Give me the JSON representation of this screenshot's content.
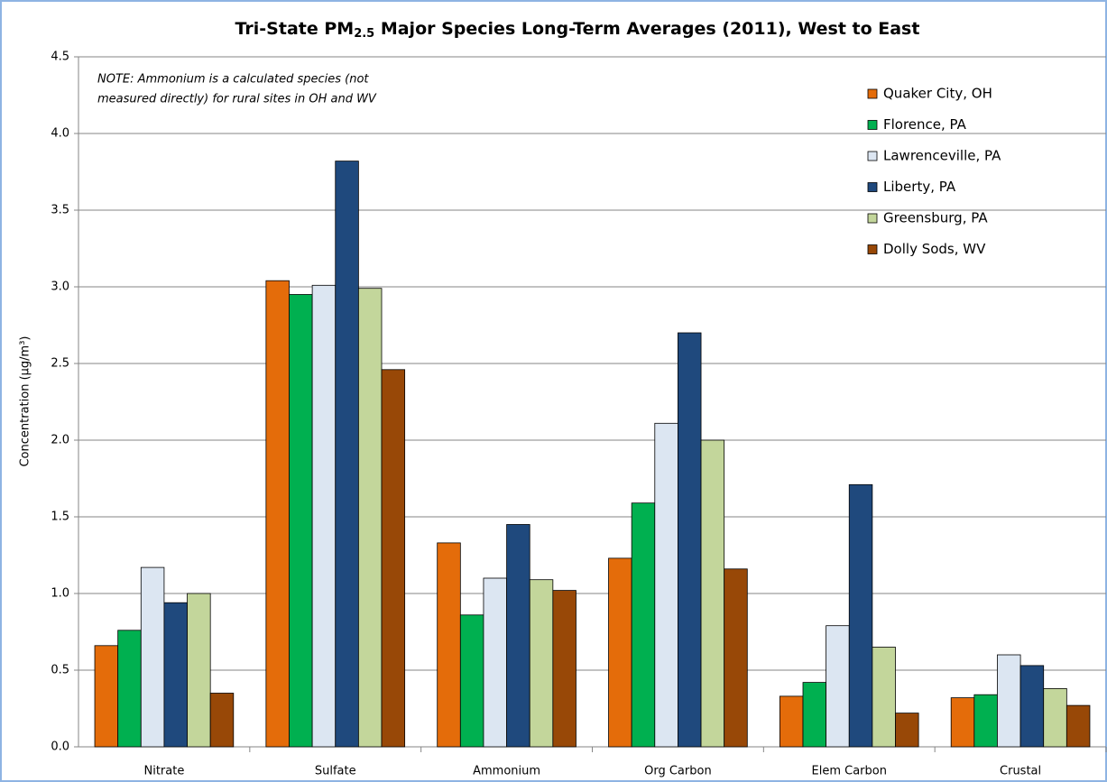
{
  "chart_data": {
    "type": "bar",
    "title": "Tri-State PM",
    "title_subscript": "2.5",
    "title_rest": " Major Species Long-Term Averages (2011), West to East",
    "y_label": "Concentration (µg/m³)",
    "note": [
      "NOTE:  Ammonium is a calculated species (not",
      "measured directly) for rural sites in OH and WV"
    ],
    "categories": [
      "Nitrate",
      "Sulfate",
      "Ammonium",
      "Org Carbon",
      "Elem Carbon",
      "Crustal"
    ],
    "series": [
      {
        "name": "Quaker City, OH",
        "color": "#e46c0a",
        "values": [
          0.66,
          3.04,
          1.33,
          1.23,
          0.33,
          0.32
        ]
      },
      {
        "name": "Florence, PA",
        "color": "#00b050",
        "values": [
          0.76,
          2.95,
          0.86,
          1.59,
          0.42,
          0.34
        ]
      },
      {
        "name": "Lawrenceville, PA",
        "color": "#dce6f2",
        "values": [
          1.17,
          3.01,
          1.1,
          2.11,
          0.79,
          0.6
        ]
      },
      {
        "name": "Liberty, PA",
        "color": "#1f497d",
        "values": [
          0.94,
          3.82,
          1.45,
          2.7,
          1.71,
          0.53
        ]
      },
      {
        "name": "Greensburg, PA",
        "color": "#c3d69b",
        "values": [
          1.0,
          2.99,
          1.09,
          2.0,
          0.65,
          0.38
        ]
      },
      {
        "name": "Dolly Sods, WV",
        "color": "#984807",
        "values": [
          0.35,
          2.46,
          1.02,
          1.16,
          0.22,
          0.27
        ]
      }
    ],
    "ylim": [
      0,
      4.5
    ],
    "yticks": [
      {
        "value": 0,
        "label": "0.0"
      },
      {
        "value": 0.5,
        "label": "0.5"
      },
      {
        "value": 1,
        "label": "1.0"
      },
      {
        "value": 1.5,
        "label": "1.5"
      },
      {
        "value": 2,
        "label": "2.0"
      },
      {
        "value": 2.5,
        "label": "2.5"
      },
      {
        "value": 3,
        "label": "3.0"
      },
      {
        "value": 3.5,
        "label": "3.5"
      },
      {
        "value": 4,
        "label": "4.0"
      },
      {
        "value": 4.5,
        "label": "4.5"
      }
    ],
    "grid": true,
    "legend": "upper right"
  }
}
